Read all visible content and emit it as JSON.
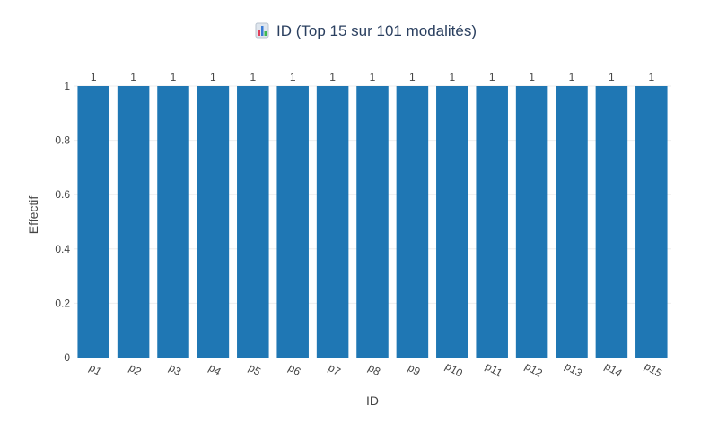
{
  "chart_data": {
    "type": "bar",
    "title_icon": "bar-chart-emoji",
    "title": "ID (Top 15 sur 101 modalités)",
    "xlabel": "ID",
    "ylabel": "Effectif",
    "categories": [
      "p1",
      "p2",
      "p3",
      "p4",
      "p5",
      "p6",
      "p7",
      "p8",
      "p9",
      "p10",
      "p11",
      "p12",
      "p13",
      "p14",
      "p15"
    ],
    "values": [
      1,
      1,
      1,
      1,
      1,
      1,
      1,
      1,
      1,
      1,
      1,
      1,
      1,
      1,
      1
    ],
    "data_labels": [
      "1",
      "1",
      "1",
      "1",
      "1",
      "1",
      "1",
      "1",
      "1",
      "1",
      "1",
      "1",
      "1",
      "1",
      "1"
    ],
    "ylim": [
      0,
      1
    ],
    "yticks": [
      "0",
      "0.2",
      "0.4",
      "0.6",
      "0.8",
      "1"
    ],
    "grid": true,
    "legend": "none",
    "bar_color": "#1f77b4"
  }
}
